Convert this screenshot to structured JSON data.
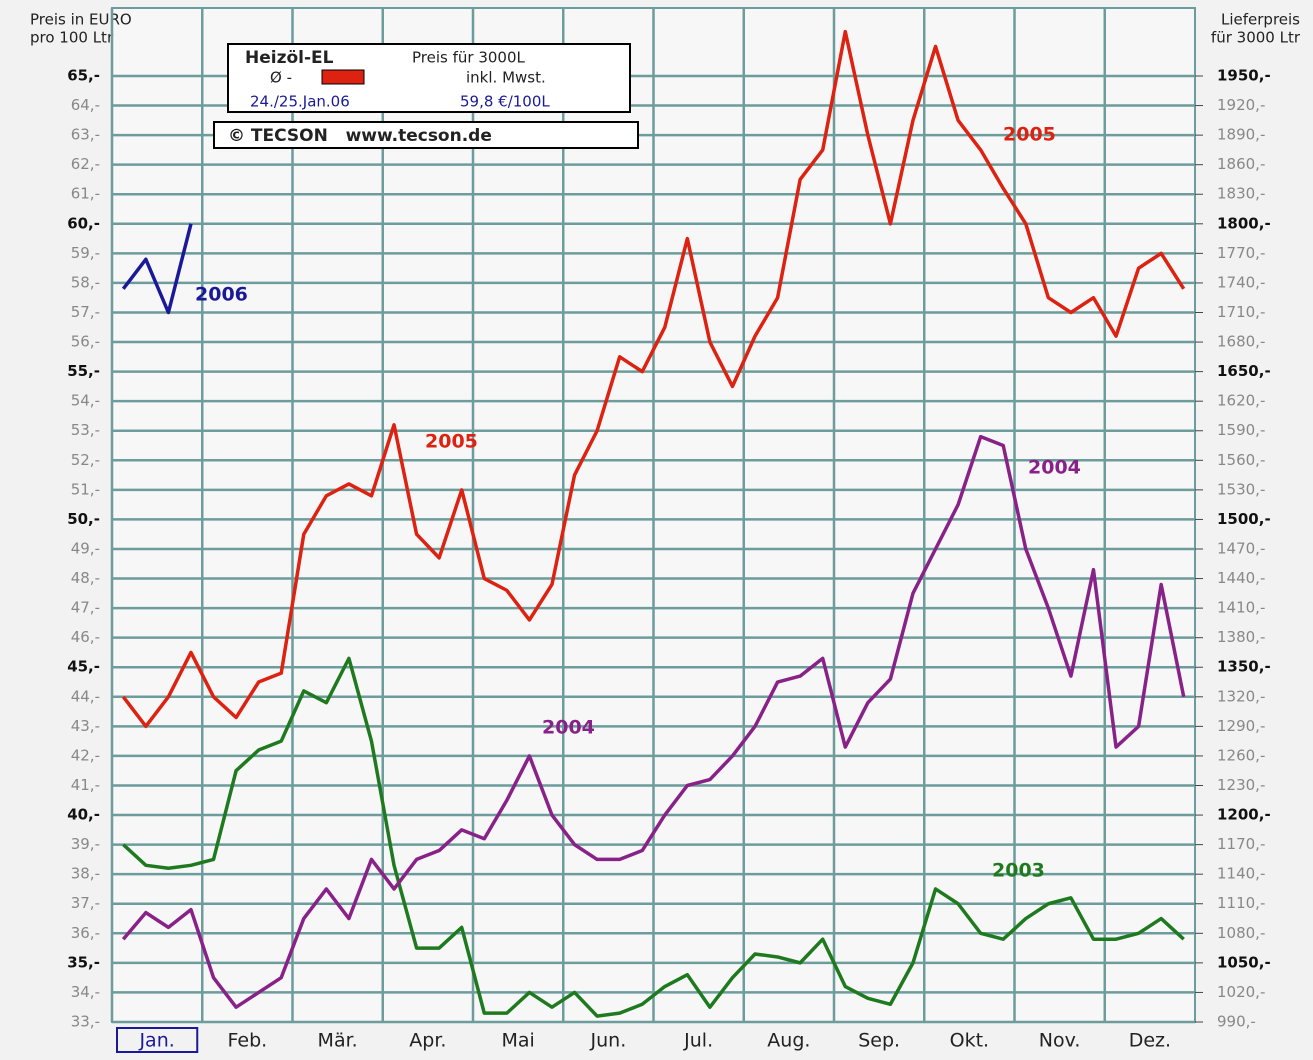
{
  "chart_data": {
    "type": "line",
    "y_label_left": [
      "Preis in EURO",
      "pro 100 Ltr"
    ],
    "y_label_right": [
      "Lieferpreis",
      "für 3000 Ltr"
    ],
    "legend_box": {
      "title": "Heizöl-EL",
      "price_note": "Preis für 3000L",
      "avg": "Ø -",
      "tax": "inkl. Mwst.",
      "date": "24./25.Jan.06",
      "price": "59,8 €/100L",
      "source": "© TECSON   www.tecson.de"
    },
    "xlim": [
      0,
      12
    ],
    "xticks": [
      {
        "value": 0,
        "label": "Jan."
      },
      {
        "value": 1,
        "label": "Feb."
      },
      {
        "value": 2,
        "label": "Mär."
      },
      {
        "value": 3,
        "label": "Apr."
      },
      {
        "value": 4,
        "label": "Mai"
      },
      {
        "value": 5,
        "label": "Jun."
      },
      {
        "value": 6,
        "label": "Jul."
      },
      {
        "value": 7,
        "label": "Aug."
      },
      {
        "value": 8,
        "label": "Sep."
      },
      {
        "value": 9,
        "label": "Okt."
      },
      {
        "value": 10,
        "label": "Nov."
      },
      {
        "value": 11,
        "label": "Dez."
      }
    ],
    "ylim": [
      33,
      67.3
    ],
    "yticks": [
      {
        "value": 33,
        "label": "33,-"
      },
      {
        "value": 34,
        "label": "34,-"
      },
      {
        "value": 35,
        "label": "35,-"
      },
      {
        "value": 36,
        "label": "36,-"
      },
      {
        "value": 37,
        "label": "37,-"
      },
      {
        "value": 38,
        "label": "38,-"
      },
      {
        "value": 39,
        "label": "39,-"
      },
      {
        "value": 40,
        "label": "40,-"
      },
      {
        "value": 41,
        "label": "41,-"
      },
      {
        "value": 42,
        "label": "42,-"
      },
      {
        "value": 43,
        "label": "43,-"
      },
      {
        "value": 44,
        "label": "44,-"
      },
      {
        "value": 45,
        "label": "45,-"
      },
      {
        "value": 46,
        "label": "46,-"
      },
      {
        "value": 47,
        "label": "47,-"
      },
      {
        "value": 48,
        "label": "48,-"
      },
      {
        "value": 49,
        "label": "49,-"
      },
      {
        "value": 50,
        "label": "50,-"
      },
      {
        "value": 51,
        "label": "51,-"
      },
      {
        "value": 52,
        "label": "52,-"
      },
      {
        "value": 53,
        "label": "53,-"
      },
      {
        "value": 54,
        "label": "54,-"
      },
      {
        "value": 55,
        "label": "55,-"
      },
      {
        "value": 56,
        "label": "56,-"
      },
      {
        "value": 57,
        "label": "57,-"
      },
      {
        "value": 58,
        "label": "58,-"
      },
      {
        "value": 59,
        "label": "59,-"
      },
      {
        "value": 60,
        "label": "60,-"
      },
      {
        "value": 61,
        "label": "61,-"
      },
      {
        "value": 62,
        "label": "62,-"
      },
      {
        "value": 63,
        "label": "63,-"
      },
      {
        "value": 64,
        "label": "64,-"
      },
      {
        "value": 65,
        "label": "65,-"
      }
    ],
    "y2lim": [
      990,
      2019
    ],
    "y2ticks": [
      {
        "value": 990,
        "label": "990,-"
      },
      {
        "value": 1020,
        "label": "1020,-"
      },
      {
        "value": 1050,
        "label": "1050,-"
      },
      {
        "value": 1080,
        "label": "1080,-"
      },
      {
        "value": 1110,
        "label": "1110,-"
      },
      {
        "value": 1140,
        "label": "1140,-"
      },
      {
        "value": 1170,
        "label": "1170,-"
      },
      {
        "value": 1200,
        "label": "1200,-"
      },
      {
        "value": 1230,
        "label": "1230,-"
      },
      {
        "value": 1260,
        "label": "1260,-"
      },
      {
        "value": 1290,
        "label": "1290,-"
      },
      {
        "value": 1320,
        "label": "1320,-"
      },
      {
        "value": 1350,
        "label": "1350,-"
      },
      {
        "value": 1380,
        "label": "1380,-"
      },
      {
        "value": 1410,
        "label": "1410,-"
      },
      {
        "value": 1440,
        "label": "1440,-"
      },
      {
        "value": 1470,
        "label": "1470,-"
      },
      {
        "value": 1500,
        "label": "1500,-"
      },
      {
        "value": 1530,
        "label": "1530,-"
      },
      {
        "value": 1560,
        "label": "1560,-"
      },
      {
        "value": 1590,
        "label": "1590,-"
      },
      {
        "value": 1620,
        "label": "1620,-"
      },
      {
        "value": 1650,
        "label": "1650,-"
      },
      {
        "value": 1680,
        "label": "1680,-"
      },
      {
        "value": 1710,
        "label": "1710,-"
      },
      {
        "value": 1740,
        "label": "1740,-"
      },
      {
        "value": 1770,
        "label": "1770,-"
      },
      {
        "value": 1800,
        "label": "1800,-"
      },
      {
        "value": 1830,
        "label": "1830,-"
      },
      {
        "value": 1860,
        "label": "1860,-"
      },
      {
        "value": 1890,
        "label": "1890,-"
      },
      {
        "value": 1920,
        "label": "1920,-"
      },
      {
        "value": 1950,
        "label": "1950,-"
      }
    ],
    "grid": true,
    "series": [
      {
        "name": "2003",
        "color": "#1f7a1f",
        "values": [
          39,
          38.3,
          38.2,
          38.3,
          38.5,
          41.5,
          42.2,
          42.5,
          44.2,
          43.8,
          45.3,
          42.5,
          38.3,
          35.5,
          35.5,
          36.2,
          33.3,
          33.3,
          34,
          33.5,
          34,
          33.2,
          33.3,
          33.6,
          34.2,
          34.6,
          33.5,
          34.5,
          35.3,
          35.2,
          35,
          35.8,
          34.2,
          33.8,
          33.6,
          35,
          37.5,
          37,
          36,
          35.8,
          36.5,
          37,
          37.2,
          35.8,
          35.8,
          36,
          36.5,
          35.8
        ]
      },
      {
        "name": "2004",
        "color": "#882288",
        "values": [
          35.8,
          36.7,
          36.2,
          36.8,
          34.5,
          33.5,
          34,
          34.5,
          36.5,
          37.5,
          36.5,
          38.5,
          37.5,
          38.5,
          38.8,
          39.5,
          39.2,
          40.5,
          42,
          40,
          39,
          38.5,
          38.5,
          38.8,
          40,
          41,
          41.2,
          42,
          43,
          44.5,
          44.7,
          45.3,
          42.3,
          43.8,
          44.6,
          47.5,
          49,
          50.5,
          52.8,
          52.5,
          49,
          47,
          44.7,
          48.3,
          42.3,
          43,
          47.8,
          44
        ]
      },
      {
        "name": "2005",
        "color": "#dd2211",
        "values": [
          44,
          43,
          44,
          45.5,
          44,
          43.3,
          44.5,
          44.8,
          49.5,
          50.8,
          51.2,
          50.8,
          53.2,
          49.5,
          48.7,
          51,
          48,
          47.6,
          46.6,
          47.8,
          51.5,
          53,
          55.5,
          55,
          56.5,
          59.5,
          56,
          54.5,
          56.2,
          57.5,
          61.5,
          62.5,
          66.5,
          63,
          60,
          63.5,
          66,
          63.5,
          62.5,
          61.2,
          60,
          57.5,
          57,
          57.5,
          56.2,
          58.5,
          59,
          57.8
        ]
      },
      {
        "name": "2006",
        "color": "#1a1a99",
        "values": [
          57.8,
          58.8,
          57,
          60,
          null,
          null,
          null,
          null,
          null,
          null,
          null,
          null,
          null,
          null,
          null,
          null,
          null,
          null,
          null,
          null,
          null,
          null,
          null,
          null,
          null,
          null,
          null,
          null,
          null,
          null,
          null,
          null,
          null,
          null,
          null,
          null,
          null,
          null,
          null,
          null,
          null,
          null,
          null,
          null,
          null,
          null,
          null,
          null
        ]
      }
    ],
    "annotations": [
      "2006",
      "2005",
      "2005",
      "2004",
      "2004",
      "2003"
    ]
  }
}
